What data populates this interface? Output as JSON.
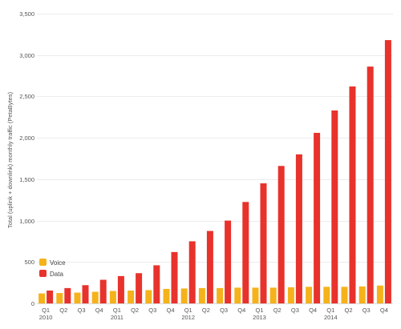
{
  "chart_data": {
    "type": "bar",
    "ylabel": "Total (uplink + downlink) monthly traffic (PetaBytes)",
    "xlabel": "",
    "ylim": [
      0,
      3500
    ],
    "yticks": [
      0,
      500,
      1000,
      1500,
      2000,
      2500,
      3000,
      3500
    ],
    "ytick_labels": [
      "0",
      "500",
      "1,000",
      "1,500",
      "2,000",
      "2,500",
      "3,000",
      "3,500"
    ],
    "grid": true,
    "legend_position": "bottom-left",
    "categories": [
      "Q1",
      "Q2",
      "Q3",
      "Q4",
      "Q1",
      "Q2",
      "Q3",
      "Q4",
      "Q1",
      "Q2",
      "Q3",
      "Q4",
      "Q1",
      "Q2",
      "Q3",
      "Q4",
      "Q1",
      "Q2",
      "Q3",
      "Q4"
    ],
    "year_labels": [
      {
        "index": 0,
        "label": "2010"
      },
      {
        "index": 4,
        "label": "2011"
      },
      {
        "index": 8,
        "label": "2012"
      },
      {
        "index": 12,
        "label": "2013"
      },
      {
        "index": 16,
        "label": "2014"
      }
    ],
    "series": [
      {
        "name": "Voice",
        "color": "#f5b21b",
        "values": [
          120,
          125,
          130,
          140,
          150,
          155,
          160,
          175,
          180,
          185,
          185,
          190,
          190,
          190,
          195,
          200,
          200,
          200,
          205,
          215
        ]
      },
      {
        "name": "Data",
        "color": "#e8322c",
        "values": [
          155,
          185,
          220,
          285,
          330,
          365,
          460,
          620,
          750,
          875,
          1000,
          1225,
          1450,
          1660,
          1800,
          2060,
          2330,
          2620,
          2860,
          3180
        ]
      }
    ]
  }
}
